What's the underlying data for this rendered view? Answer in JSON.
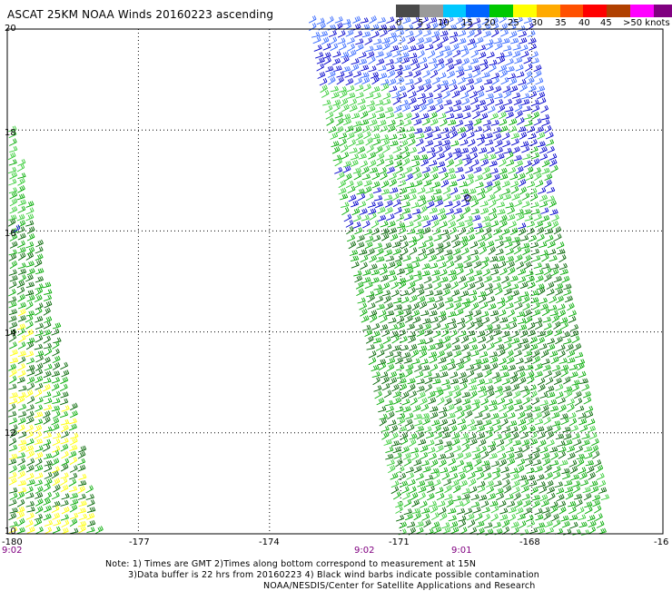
{
  "title": "ASCAT 25KM NOAA Winds 20160223 ascending",
  "colorbar": {
    "labels": [
      "0",
      "5",
      "10",
      "15",
      "20",
      "25",
      "30",
      "35",
      "40",
      "45",
      ">50 knots"
    ],
    "colors": [
      "#4a4a4a",
      "#9a9a9a",
      "#00c8ff",
      "#0064ff",
      "#00c800",
      "#ffff00",
      "#ffaa00",
      "#ff5000",
      "#ff0000",
      "#b04000",
      "#ff00ff",
      "#800080"
    ]
  },
  "axes": {
    "x_ticks": [
      "-180",
      "-177",
      "-174",
      "-171",
      "-168",
      "-16"
    ],
    "y_ticks": [
      "20",
      "18",
      "16",
      "14",
      "12",
      "10"
    ]
  },
  "pass_times": [
    "9:02",
    "9:02",
    "9:01"
  ],
  "notes": {
    "line1": "Note: 1) Times are GMT 2)Times along bottom correspond to measurement at 15N",
    "line2": "3)Data buffer is 22 hrs from 20160223 4) Black wind barbs indicate possible contamination",
    "line3": "NOAA/NESDIS/Center for Satellite Applications and Research"
  },
  "barb_colors": {
    "green": "#00aa00",
    "light_green": "#33cc33",
    "dark_green": "#006400",
    "blue": "#0000cc",
    "light_blue": "#3366ff",
    "yellow": "#ffff00",
    "black": "#000000",
    "grid": "#000000"
  }
}
